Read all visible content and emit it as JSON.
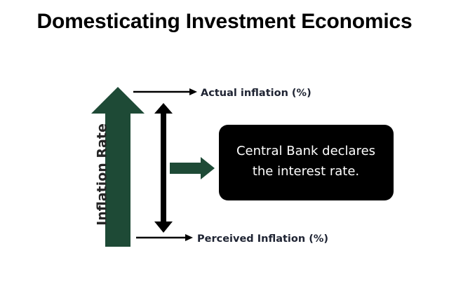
{
  "title": "Domesticating Investment Economics",
  "diagram": {
    "y_axis_label": "Inflation Rate",
    "top_arrow_label": "Actual inflation (%)",
    "bottom_arrow_label": "Perceived Inflation (%)",
    "box_text_line1": "Central Bank declares",
    "box_text_line2": "the interest rate.",
    "colors": {
      "dark_green": "#1e4a36",
      "black": "#000000",
      "box_fill": "#000000",
      "box_text": "#ffffff",
      "label_text": "#1f2433"
    }
  }
}
